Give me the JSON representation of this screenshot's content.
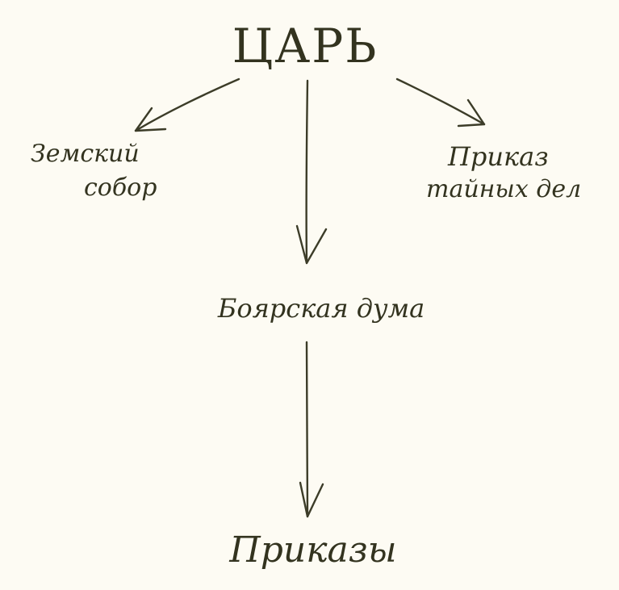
{
  "nodes": {
    "tsar": "ЦАРЬ",
    "zemsky_sobor": {
      "line1": "Земский",
      "line2": "собор"
    },
    "secret_prikaz": {
      "line1": "Приказ",
      "line2": "тайных дел"
    },
    "boyar_duma": "Боярская дума",
    "prikazy": "Приказы"
  },
  "colors": {
    "background": "#fdfbf3",
    "ink": "#33331f"
  }
}
